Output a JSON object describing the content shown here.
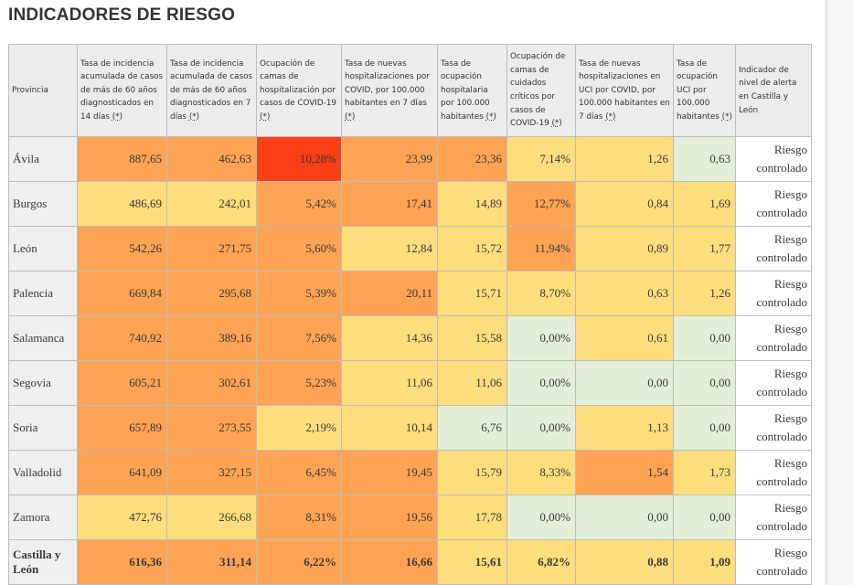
{
  "page": {
    "title": "INDICADORES DE RIESGO"
  },
  "palette": {
    "green": "#e3eed6",
    "yellow": "#fedd7d",
    "orange": "#fda353",
    "red": "#fa3e16",
    "header_bg": "#ececec",
    "province_bg": "#efefef"
  },
  "table": {
    "headers": [
      {
        "text": "Provincia",
        "ref": ""
      },
      {
        "text": "Tasa de incidencia acumulada de casos de más de 60 años diagnosticados en 14 días ",
        "ref": "(*)"
      },
      {
        "text": "Tasa de incidencia acumulada de casos de más de 60 años diagnosticados en 7 días ",
        "ref": "(*)"
      },
      {
        "text": "Ocupación de camas de hospitalización por casos de COVID-19 ",
        "ref": "(*)"
      },
      {
        "text": "Tasa de nuevas hospitalizaciones por COVID, por 100.000 habitantes en 7 días ",
        "ref": "(*)"
      },
      {
        "text": "Tasa de ocupación hospitalaria por 100.000 habitantes ",
        "ref": "(*)"
      },
      {
        "text": "Ocupación de camas de cuidados críticos por casos de COVID-19 ",
        "ref": "(*)"
      },
      {
        "text": "Tasa de nuevas hospitalizaciones en UCI por COVID, por 100.000 habitantes en 7 días ",
        "ref": "(*)"
      },
      {
        "text": "Tasa de ocupación UCI por 100.000 habitantes ",
        "ref": "(*)"
      },
      {
        "text": "Indicador de nivel de alerta en Castilla y León",
        "ref": ""
      }
    ],
    "rows": [
      {
        "province": "Ávila",
        "level": "Riesgo controlado",
        "values": [
          "887,65",
          "462,63",
          "10,28%",
          "23,99",
          "23,36",
          "7,14%",
          "1,26",
          "0,63"
        ],
        "colors": [
          "orange",
          "orange",
          "red",
          "orange",
          "orange",
          "yellow",
          "yellow",
          "green"
        ]
      },
      {
        "province": "Burgos",
        "level": "Riesgo controlado",
        "values": [
          "486,69",
          "242,01",
          "5,42%",
          "17,41",
          "14,89",
          "12,77%",
          "0,84",
          "1,69"
        ],
        "colors": [
          "yellow",
          "yellow",
          "orange",
          "orange",
          "yellow",
          "orange",
          "yellow",
          "yellow"
        ]
      },
      {
        "province": "León",
        "level": "Riesgo controlado",
        "values": [
          "542,26",
          "271,75",
          "5,60%",
          "12,84",
          "15,72",
          "11,94%",
          "0,89",
          "1,77"
        ],
        "colors": [
          "orange",
          "orange",
          "orange",
          "yellow",
          "yellow",
          "orange",
          "yellow",
          "yellow"
        ]
      },
      {
        "province": "Palencia",
        "level": "Riesgo controlado",
        "values": [
          "669,84",
          "295,68",
          "5,39%",
          "20,11",
          "15,71",
          "8,70%",
          "0,63",
          "1,26"
        ],
        "colors": [
          "orange",
          "orange",
          "orange",
          "orange",
          "yellow",
          "yellow",
          "yellow",
          "yellow"
        ]
      },
      {
        "province": "Salamanca",
        "level": "Riesgo controlado",
        "values": [
          "740,92",
          "389,16",
          "7,56%",
          "14,36",
          "15,58",
          "0,00%",
          "0,61",
          "0,00"
        ],
        "colors": [
          "orange",
          "orange",
          "orange",
          "yellow",
          "yellow",
          "green",
          "yellow",
          "green"
        ]
      },
      {
        "province": "Segovia",
        "level": "Riesgo controlado",
        "values": [
          "605,21",
          "302,61",
          "5,23%",
          "11,06",
          "11,06",
          "0,00%",
          "0,00",
          "0,00"
        ],
        "colors": [
          "orange",
          "orange",
          "orange",
          "yellow",
          "yellow",
          "green",
          "green",
          "green"
        ]
      },
      {
        "province": "Soria",
        "level": "Riesgo controlado",
        "values": [
          "657,89",
          "273,55",
          "2,19%",
          "10,14",
          "6,76",
          "0,00%",
          "1,13",
          "0,00"
        ],
        "colors": [
          "orange",
          "orange",
          "yellow",
          "yellow",
          "green",
          "green",
          "yellow",
          "green"
        ]
      },
      {
        "province": "Valladolid",
        "level": "Riesgo controlado",
        "values": [
          "641,09",
          "327,15",
          "6,45%",
          "19,45",
          "15,79",
          "8,33%",
          "1,54",
          "1,73"
        ],
        "colors": [
          "orange",
          "orange",
          "orange",
          "orange",
          "yellow",
          "yellow",
          "orange",
          "yellow"
        ]
      },
      {
        "province": "Zamora",
        "level": "Riesgo controlado",
        "values": [
          "472,76",
          "266,68",
          "8,31%",
          "19,56",
          "17,78",
          "0,00%",
          "0,00",
          "0,00"
        ],
        "colors": [
          "yellow",
          "yellow",
          "orange",
          "orange",
          "yellow",
          "green",
          "green",
          "green"
        ]
      },
      {
        "province": "Castilla y León",
        "level": "Riesgo controlado",
        "total": true,
        "values": [
          "616,36",
          "311,14",
          "6,22%",
          "16,66",
          "15,61",
          "6,82%",
          "0,88",
          "1,09"
        ],
        "colors": [
          "orange",
          "orange",
          "orange",
          "orange",
          "yellow",
          "yellow",
          "yellow",
          "yellow"
        ]
      }
    ]
  }
}
